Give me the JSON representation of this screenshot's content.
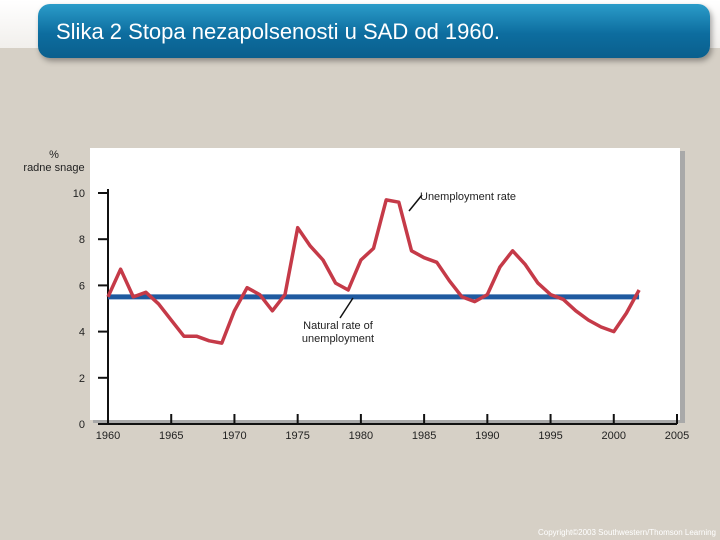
{
  "slide": {
    "title": "Slika 2 Stopa nezapolsenosti u SAD od 1960.",
    "copyright": "Copyright©2003 Southwestern/Thomson Learning"
  },
  "colors": {
    "title_bar": "#0d6d9f",
    "unemployment_line": "#c53a48",
    "natural_rate_line": "#1f5aa0",
    "axis": "#111111",
    "plot_background": "#ffffff"
  },
  "chart_data": {
    "type": "line",
    "ylabel_lines": [
      "%",
      "radne  snage"
    ],
    "xlim": [
      1960,
      2005
    ],
    "ylim": [
      0,
      10
    ],
    "x_ticks": [
      1960,
      1965,
      1970,
      1975,
      1980,
      1985,
      1990,
      1995,
      2000,
      2005
    ],
    "y_ticks": [
      0,
      2,
      4,
      6,
      8,
      10
    ],
    "grid": false,
    "annotations": {
      "unemployment": "Unemployment rate",
      "natural": [
        "Natural rate of",
        "unemployment"
      ]
    },
    "series": [
      {
        "key": "unemployment",
        "x": [
          1960,
          1961,
          1962,
          1963,
          1964,
          1965,
          1966,
          1967,
          1968,
          1969,
          1970,
          1971,
          1972,
          1973,
          1974,
          1975,
          1976,
          1977,
          1978,
          1979,
          1980,
          1981,
          1982,
          1983,
          1984,
          1985,
          1986,
          1987,
          1988,
          1989,
          1990,
          1991,
          1992,
          1993,
          1994,
          1995,
          1996,
          1997,
          1998,
          1999,
          2000,
          2001,
          2002
        ],
        "values": [
          5.5,
          6.7,
          5.5,
          5.7,
          5.2,
          4.5,
          3.8,
          3.8,
          3.6,
          3.5,
          4.9,
          5.9,
          5.6,
          4.9,
          5.6,
          8.5,
          7.7,
          7.1,
          6.1,
          5.8,
          7.1,
          7.6,
          9.7,
          9.6,
          7.5,
          7.2,
          7.0,
          6.2,
          5.5,
          5.3,
          5.6,
          6.8,
          7.5,
          6.9,
          6.1,
          5.6,
          5.4,
          4.9,
          4.5,
          4.2,
          4.0,
          4.8,
          5.8
        ]
      },
      {
        "key": "natural",
        "x": [
          1960,
          2002
        ],
        "values": [
          5.5,
          5.5
        ]
      }
    ]
  }
}
